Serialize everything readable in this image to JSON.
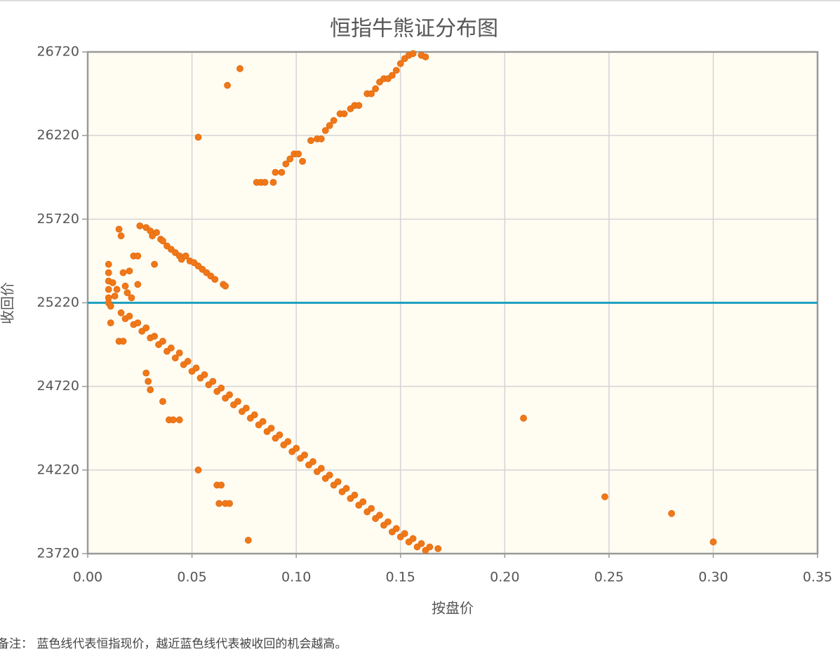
{
  "chart_data": {
    "type": "scatter",
    "title": "恒指牛熊证分布图",
    "x_label": "按盘价",
    "y_label": "收回价",
    "note": "备注：  蓝色线代表恒指现价，越近蓝色线代表被收回的机会越高。",
    "color": "#f07818",
    "hline": {
      "value": 25220,
      "color": "#1fa0bf"
    },
    "grid": true,
    "xlim": [
      0,
      0.35
    ],
    "ylim": [
      23720,
      26720
    ],
    "xticks": [
      {
        "value": 0,
        "label": "0.00"
      },
      0.05,
      {
        "value": 0.1,
        "label": "0.10"
      },
      0.15,
      {
        "value": 0.2,
        "label": "0.20"
      },
      0.25,
      {
        "value": 0.3,
        "label": "0.30"
      },
      0.35
    ],
    "yticks": [
      23720,
      24220,
      24720,
      25220,
      25720,
      26220,
      26720
    ],
    "x": [
      0.073,
      0.067,
      0.053,
      0.209,
      0.248,
      0.28,
      0.3,
      0.053,
      0.062,
      0.064,
      0.063,
      0.066,
      0.068,
      0.077,
      0.036,
      0.039,
      0.041,
      0.044,
      0.028,
      0.029,
      0.03,
      0.081,
      0.083,
      0.085,
      0.089,
      0.09,
      0.093,
      0.095,
      0.097,
      0.099,
      0.101,
      0.103,
      0.107,
      0.11,
      0.112,
      0.114,
      0.116,
      0.118,
      0.121,
      0.123,
      0.126,
      0.128,
      0.13,
      0.134,
      0.136,
      0.138,
      0.14,
      0.142,
      0.144,
      0.146,
      0.148,
      0.15,
      0.152,
      0.154,
      0.156,
      0.16,
      0.162,
      0.025,
      0.028,
      0.03,
      0.031,
      0.033,
      0.035,
      0.036,
      0.038,
      0.04,
      0.042,
      0.044,
      0.045,
      0.047,
      0.049,
      0.051,
      0.053,
      0.055,
      0.057,
      0.059,
      0.061,
      0.065,
      0.066,
      0.032,
      0.01,
      0.01,
      0.01,
      0.01,
      0.01,
      0.01,
      0.011,
      0.011,
      0.012,
      0.013,
      0.014,
      0.015,
      0.016,
      0.017,
      0.018,
      0.019,
      0.02,
      0.021,
      0.022,
      0.024,
      0.024,
      0.015,
      0.017,
      0.016,
      0.018,
      0.02,
      0.022,
      0.024,
      0.026,
      0.028,
      0.03,
      0.032,
      0.034,
      0.036,
      0.038,
      0.04,
      0.042,
      0.044,
      0.046,
      0.048,
      0.05,
      0.052,
      0.054,
      0.056,
      0.058,
      0.06,
      0.062,
      0.064,
      0.066,
      0.068,
      0.07,
      0.072,
      0.074,
      0.076,
      0.078,
      0.08,
      0.082,
      0.084,
      0.086,
      0.088,
      0.09,
      0.092,
      0.094,
      0.096,
      0.098,
      0.1,
      0.102,
      0.104,
      0.106,
      0.108,
      0.11,
      0.112,
      0.114,
      0.116,
      0.118,
      0.12,
      0.122,
      0.124,
      0.126,
      0.128,
      0.13,
      0.132,
      0.134,
      0.136,
      0.138,
      0.14,
      0.142,
      0.144,
      0.146,
      0.148,
      0.15,
      0.152,
      0.154,
      0.156,
      0.158,
      0.16,
      0.162,
      0.164,
      0.168
    ],
    "values": [
      26620,
      26520,
      26210,
      24530,
      24060,
      23960,
      23790,
      24220,
      24130,
      24130,
      24020,
      24020,
      24020,
      23800,
      24630,
      24520,
      24520,
      24520,
      24800,
      24750,
      24700,
      25940,
      25940,
      25940,
      25940,
      26000,
      26000,
      26050,
      26080,
      26110,
      26110,
      26066,
      26190,
      26200,
      26200,
      26250,
      26280,
      26310,
      26350,
      26350,
      26380,
      26400,
      26400,
      26470,
      26470,
      26500,
      26540,
      26560,
      26560,
      26580,
      26610,
      26650,
      26680,
      26700,
      26710,
      26700,
      26690,
      25680,
      25670,
      25650,
      25620,
      25640,
      25600,
      25590,
      25560,
      25540,
      25520,
      25500,
      25480,
      25500,
      25470,
      25460,
      25440,
      25420,
      25400,
      25380,
      25360,
      25330,
      25320,
      25450,
      25450,
      25400,
      25350,
      25300,
      25250,
      25220,
      25200,
      25100,
      25340,
      25260,
      25300,
      25660,
      25620,
      25400,
      25320,
      25280,
      25410,
      25250,
      25500,
      25500,
      25330,
      24990,
      24990,
      25160,
      25125,
      25140,
      25090,
      25100,
      25050,
      25070,
      25010,
      25020,
      24970,
      24990,
      24930,
      24950,
      24890,
      24920,
      24850,
      24870,
      24810,
      24830,
      24770,
      24790,
      24730,
      24750,
      24690,
      24710,
      24650,
      24670,
      24610,
      24630,
      24570,
      24590,
      24530,
      24550,
      24490,
      24510,
      24450,
      24470,
      24410,
      24430,
      24370,
      24390,
      24330,
      24350,
      24290,
      24310,
      24250,
      24270,
      24210,
      24230,
      24170,
      24190,
      24130,
      24150,
      24090,
      24110,
      24050,
      24070,
      24010,
      24030,
      23970,
      23990,
      23930,
      23950,
      23890,
      23910,
      23850,
      23870,
      23820,
      23840,
      23790,
      23810,
      23760,
      23780,
      23740,
      23760,
      23750
    ]
  }
}
